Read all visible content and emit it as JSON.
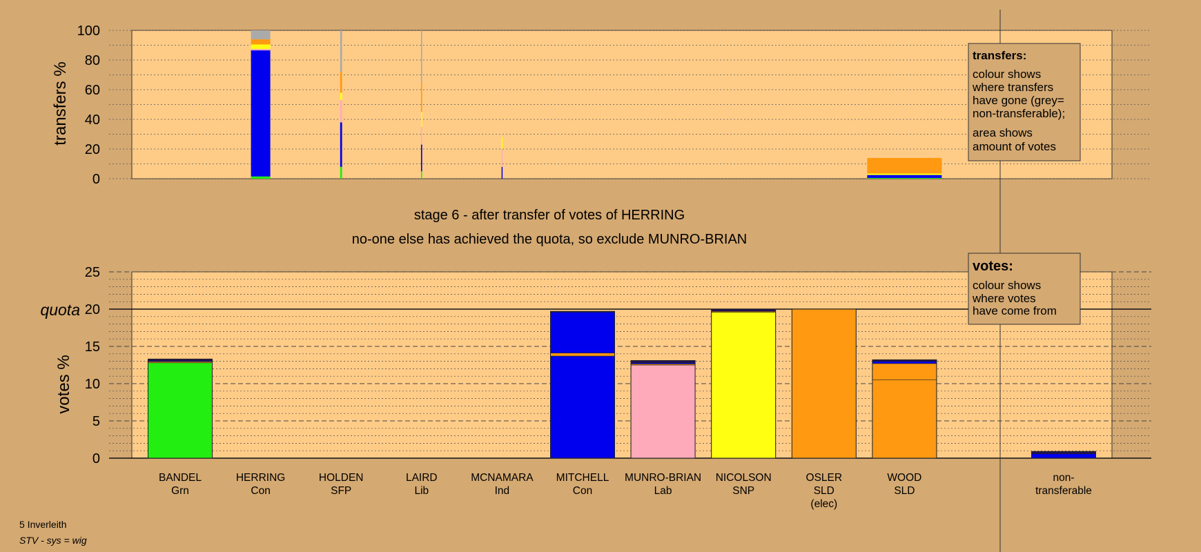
{
  "colors": {
    "background": "#d4a972",
    "plot": "#ffcc88",
    "Grn": "#22ee11",
    "Con": "#0000ee",
    "Lab": "#ffaabb",
    "SNP": "#ffff11",
    "SLD": "#ff9911",
    "SFP": "#aa66cc",
    "Lib": "#ffaa44",
    "Ind": "#cc88ff",
    "nontransferable": "#aaaaaa",
    "dark": "#221155"
  },
  "chart_data": [
    {
      "id": "transfers",
      "type": "bar",
      "ylabel": "transfers %",
      "ylim": [
        0,
        100
      ],
      "yticks": [
        "0",
        "20",
        "40",
        "60",
        "80",
        "100"
      ],
      "legend": {
        "title": "transfers:",
        "lines": [
          "colour shows",
          "where transfers",
          "have gone (grey=",
          "non-transferable);",
          "area shows",
          "amount of votes"
        ]
      },
      "bars": [
        {
          "candidate": "HERRING",
          "width_share": 1.0,
          "segments": [
            {
              "party": "Grn",
              "value": 1.5
            },
            {
              "party": "Con",
              "value": 85
            },
            {
              "party": "Lab",
              "value": 1
            },
            {
              "party": "SNP",
              "value": 3
            },
            {
              "party": "SLD",
              "value": 3.5
            },
            {
              "party": "nontransferable",
              "value": 6
            }
          ]
        },
        {
          "candidate": "HOLDEN",
          "width_share": 0.1,
          "segments": [
            {
              "party": "Grn",
              "value": 8
            },
            {
              "party": "Con",
              "value": 30
            },
            {
              "party": "Lab",
              "value": 15
            },
            {
              "party": "SNP",
              "value": 5
            },
            {
              "party": "SLD",
              "value": 14
            },
            {
              "party": "nontransferable",
              "value": 28
            }
          ]
        },
        {
          "candidate": "LAIRD",
          "width_share": 0.06,
          "segments": [
            {
              "party": "Grn",
              "value": 5
            },
            {
              "party": "Con",
              "value": 18
            },
            {
              "party": "Lab",
              "value": 12
            },
            {
              "party": "SNP",
              "value": 10
            },
            {
              "party": "SLD",
              "value": 20
            },
            {
              "party": "nontransferable",
              "value": 35
            }
          ]
        },
        {
          "candidate": "MCNAMARA",
          "width_share": 0.02,
          "segments": [
            {
              "party": "Con",
              "value": 8
            },
            {
              "party": "Lab",
              "value": 12
            },
            {
              "party": "SNP",
              "value": 8
            }
          ]
        },
        {
          "candidate": "WOOD",
          "width_share": 1.0,
          "segments": [
            {
              "party": "Grn",
              "value": 0.5
            },
            {
              "party": "Con",
              "value": 2
            },
            {
              "party": "SNP",
              "value": 1
            },
            {
              "party": "SLD",
              "value": 10.5
            }
          ]
        }
      ]
    },
    {
      "id": "votes",
      "type": "bar",
      "ylabel": "votes %",
      "ylim": [
        0,
        25
      ],
      "yticks": [
        "0",
        "5",
        "10",
        "15",
        "20",
        "25"
      ],
      "quota": {
        "label": "quota",
        "value": 20
      },
      "legend": {
        "title": "votes:",
        "lines": [
          "colour shows",
          "where votes",
          "have come from"
        ]
      },
      "categories": [
        {
          "name": "BANDEL",
          "party": "Grn"
        },
        {
          "name": "HERRING",
          "party": "Con"
        },
        {
          "name": "HOLDEN",
          "party": "SFP"
        },
        {
          "name": "LAIRD",
          "party": "Lib"
        },
        {
          "name": "MCNAMARA",
          "party": "Ind"
        },
        {
          "name": "MITCHELL",
          "party": "Con"
        },
        {
          "name": "MUNRO-BRIAN",
          "party": "Lab"
        },
        {
          "name": "NICOLSON",
          "party": "SNP"
        },
        {
          "name": "OSLER",
          "party": "SLD",
          "note": "(elec)"
        },
        {
          "name": "WOOD",
          "party": "SLD"
        }
      ],
      "nontransferable_label": [
        "non-",
        "transferable"
      ],
      "bars": [
        {
          "candidate": "BANDEL",
          "segments": [
            {
              "party": "Grn",
              "value": 12.8
            },
            {
              "party": "SLD",
              "value": 0.15
            },
            {
              "party": "Con",
              "value": 0.1
            },
            {
              "party": "dark",
              "value": 0.25
            }
          ]
        },
        {
          "candidate": "HERRING",
          "segments": []
        },
        {
          "candidate": "HOLDEN",
          "segments": []
        },
        {
          "candidate": "LAIRD",
          "segments": []
        },
        {
          "candidate": "MCNAMARA",
          "segments": []
        },
        {
          "candidate": "MITCHELL",
          "segments": [
            {
              "party": "Con",
              "value": 13.7
            },
            {
              "party": "SLD",
              "value": 0.4
            },
            {
              "party": "Con",
              "value": 5.5
            },
            {
              "party": "dark",
              "value": 0.1
            }
          ]
        },
        {
          "candidate": "MUNRO-BRIAN",
          "segments": [
            {
              "party": "Lab",
              "value": 12.5
            },
            {
              "party": "SLD",
              "value": 0.15
            },
            {
              "party": "Con",
              "value": 0.15
            },
            {
              "party": "dark",
              "value": 0.3
            }
          ]
        },
        {
          "candidate": "NICOLSON",
          "segments": [
            {
              "party": "SNP",
              "value": 19.6
            },
            {
              "party": "SLD",
              "value": 0.1
            },
            {
              "party": "dark",
              "value": 0.3
            }
          ]
        },
        {
          "candidate": "OSLER",
          "segments": [
            {
              "party": "SLD",
              "value": 20
            }
          ]
        },
        {
          "candidate": "WOOD",
          "segments": [
            {
              "party": "SLD",
              "value": 10.5
            },
            {
              "party": "SLD",
              "value": 2.2
            },
            {
              "party": "Con",
              "value": 0.3
            },
            {
              "party": "dark",
              "value": 0.2
            }
          ]
        }
      ],
      "nontransferable_bar": {
        "segments": [
          {
            "party": "Con",
            "value": 0.6
          },
          {
            "party": "dark",
            "value": 0.3
          }
        ]
      }
    }
  ],
  "stage": {
    "line1": "stage 6 - after transfer of votes of HERRING",
    "line2": "no-one else has achieved the quota, so exclude MUNRO-BRIAN"
  },
  "footer": {
    "constituency": "5 Inverleith",
    "system": "STV - sys = wig"
  }
}
